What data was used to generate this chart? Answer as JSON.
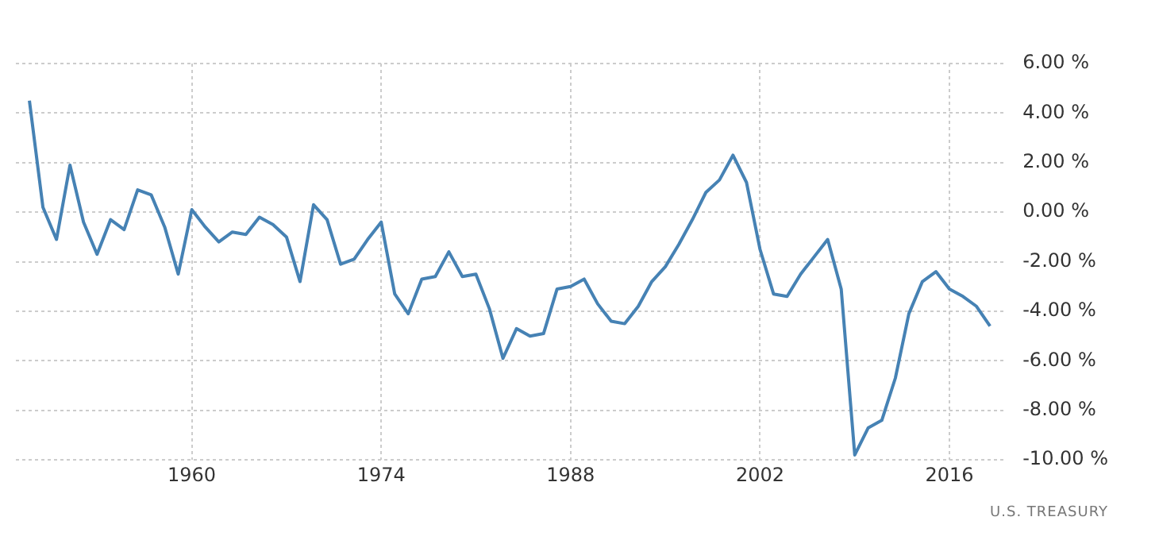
{
  "chart_data": {
    "type": "line",
    "x": [
      1948,
      1949,
      1950,
      1951,
      1952,
      1953,
      1954,
      1955,
      1956,
      1957,
      1958,
      1959,
      1960,
      1961,
      1962,
      1963,
      1964,
      1965,
      1966,
      1967,
      1968,
      1969,
      1970,
      1971,
      1972,
      1973,
      1974,
      1975,
      1976,
      1977,
      1978,
      1979,
      1980,
      1981,
      1982,
      1983,
      1984,
      1985,
      1986,
      1987,
      1988,
      1989,
      1990,
      1991,
      1992,
      1993,
      1994,
      1995,
      1996,
      1997,
      1998,
      1999,
      2000,
      2001,
      2002,
      2003,
      2004,
      2005,
      2006,
      2007,
      2008,
      2009,
      2010,
      2011,
      2012,
      2013,
      2014,
      2015,
      2016,
      2017,
      2018,
      2019
    ],
    "series": [
      {
        "color": "#4682b4",
        "values": [
          4.5,
          0.2,
          -1.1,
          1.9,
          -0.4,
          -1.7,
          -0.3,
          -0.7,
          0.9,
          0.7,
          -0.6,
          -2.5,
          0.1,
          -0.6,
          -1.2,
          -0.8,
          -0.9,
          -0.2,
          -0.5,
          -1.0,
          -2.8,
          0.3,
          -0.3,
          -2.1,
          -1.9,
          -1.1,
          -0.4,
          -3.3,
          -4.1,
          -2.7,
          -2.6,
          -1.6,
          -2.6,
          -2.5,
          -3.9,
          -5.9,
          -4.7,
          -5.0,
          -4.9,
          -3.1,
          -3.0,
          -2.7,
          -3.7,
          -4.4,
          -4.5,
          -3.8,
          -2.8,
          -2.2,
          -1.3,
          -0.3,
          0.8,
          1.3,
          2.3,
          1.2,
          -1.5,
          -3.3,
          -3.4,
          -2.5,
          -1.8,
          -1.1,
          -3.1,
          -9.8,
          -8.7,
          -8.4,
          -6.7,
          -4.1,
          -2.8,
          -2.4,
          -3.1,
          -3.4,
          -3.8,
          -4.6
        ]
      }
    ],
    "xlim": [
      1947,
      2020
    ],
    "xticks": [
      1960,
      1974,
      1988,
      2002,
      2016
    ],
    "ylim": [
      -10,
      6
    ],
    "yticks": [
      {
        "value": -10,
        "label": "-10.00 %"
      },
      {
        "value": -8,
        "label": "-8.00 %"
      },
      {
        "value": -6,
        "label": "-6.00 %"
      },
      {
        "value": -4,
        "label": "-4.00 %"
      },
      {
        "value": -2,
        "label": "-2.00 %"
      },
      {
        "value": 0,
        "label": "0.00 %"
      },
      {
        "value": 2,
        "label": "2.00 %"
      },
      {
        "value": 4,
        "label": "4.00 %"
      },
      {
        "value": 6,
        "label": "6.00 %"
      }
    ],
    "grid": true,
    "legend": false,
    "marker": "none",
    "line_style": "solid",
    "annotations": [
      "U.S. TREASURY"
    ]
  }
}
